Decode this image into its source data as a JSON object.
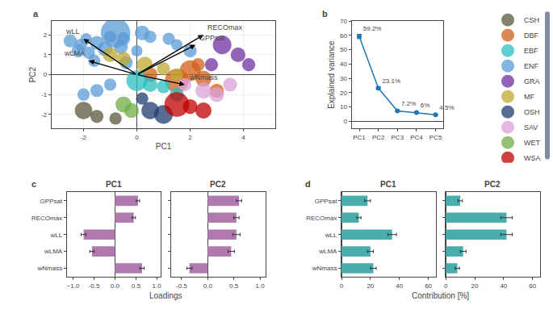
{
  "chart_data": [
    {
      "type": "scatter",
      "title": "a",
      "xlabel": "PC1",
      "ylabel": "PC2",
      "xlim": [
        -3.2,
        5.2
      ],
      "ylim": [
        -2.7,
        2.7
      ],
      "xticks": [
        -2,
        0,
        2,
        4
      ],
      "yticks": [
        -2,
        -1,
        0,
        1,
        2
      ],
      "grid": true,
      "legend": "right",
      "series": [
        {
          "name": "CSH",
          "color": "#5a5a3c",
          "x": [
            -2.0,
            -1.5,
            -0.8
          ],
          "values": [
            -1.8,
            -2.1,
            -2.2
          ],
          "sizes": [
            70,
            40,
            35
          ]
        },
        {
          "name": "DBF",
          "color": "#d2601a",
          "x": [
            0.5,
            1.5,
            2.0,
            2.5,
            2.3,
            3.0
          ],
          "values": [
            0.0,
            -0.3,
            0.2,
            -0.2,
            0.5,
            -0.8
          ],
          "sizes": [
            50,
            130,
            100,
            60,
            40,
            45
          ]
        },
        {
          "name": "EBF",
          "color": "#2abfbf",
          "x": [
            0.0,
            0.5,
            1.0,
            1.5
          ],
          "values": [
            -0.3,
            -0.5,
            -0.6,
            -1.0
          ],
          "sizes": [
            100,
            50,
            40,
            45
          ]
        },
        {
          "name": "ENF",
          "color": "#5b9bd5",
          "x": [
            -2.5,
            -2.1,
            -1.9,
            -1.5,
            -1.0,
            -0.8,
            -0.5,
            0.2,
            0.5,
            -2.2,
            -1.8,
            -1.2,
            -0.6,
            0.0,
            -1.6,
            -0.4,
            1.2,
            1.5,
            2.0,
            -1.0,
            -1.5,
            -2.0
          ],
          "values": [
            1.7,
            1.5,
            1.8,
            1.6,
            1.9,
            2.1,
            1.8,
            2.1,
            1.9,
            1.2,
            1.1,
            1.3,
            1.4,
            1.2,
            0.7,
            0.6,
            1.8,
            1.5,
            1.2,
            -0.5,
            -0.8,
            -1.0
          ],
          "sizes": [
            40,
            35,
            30,
            45,
            35,
            200,
            40,
            50,
            35,
            40,
            35,
            50,
            45,
            30,
            35,
            40,
            35,
            30,
            40,
            35,
            40,
            35
          ]
        },
        {
          "name": "GRA",
          "color": "#7030a0",
          "x": [
            3.2,
            3.8,
            4.2,
            2.8
          ],
          "values": [
            1.5,
            1.0,
            0.5,
            0.5
          ],
          "sizes": [
            80,
            50,
            40,
            40
          ]
        },
        {
          "name": "MF",
          "color": "#bfaa30",
          "x": [
            -1.0,
            -0.5,
            0.3,
            1.0,
            1.5
          ],
          "values": [
            1.0,
            0.8,
            0.5,
            0.3,
            0.0
          ],
          "sizes": [
            50,
            45,
            60,
            40,
            35
          ]
        },
        {
          "name": "OSH",
          "color": "#1f3b6e",
          "x": [
            0.5,
            1.0,
            0.2
          ],
          "values": [
            -1.8,
            -2.0,
            -1.2
          ],
          "sizes": [
            70,
            80,
            35
          ]
        },
        {
          "name": "SAV",
          "color": "#d9a0d9",
          "x": [
            2.5,
            3.0,
            3.5,
            1.8
          ],
          "values": [
            -0.8,
            -1.0,
            -0.5,
            -0.5
          ],
          "sizes": [
            60,
            50,
            45,
            40
          ]
        },
        {
          "name": "WET",
          "color": "#70ad47",
          "x": [
            -0.5,
            -0.2
          ],
          "values": [
            -1.5,
            -1.8
          ],
          "sizes": [
            60,
            50
          ]
        },
        {
          "name": "WSA",
          "color": "#c00000",
          "x": [
            1.5,
            2.0,
            2.5
          ],
          "values": [
            -1.5,
            -1.6,
            -1.8
          ],
          "sizes": [
            140,
            50,
            60
          ]
        }
      ],
      "annotations": [
        {
          "text": "wLL",
          "x0": 0,
          "y0": 0,
          "x": -2.0,
          "y": 1.8
        },
        {
          "text": "wLMA",
          "x0": 0,
          "y0": 0,
          "x": -1.8,
          "y": 0.7
        },
        {
          "text": "RECOmax",
          "x0": 0,
          "y0": 0,
          "x": 2.5,
          "y": 2.0
        },
        {
          "text": "GPPsat",
          "x0": 0,
          "y0": 0,
          "x": 2.2,
          "y": 1.5
        },
        {
          "text": "wNmass",
          "x0": 0,
          "y0": 0,
          "x": 1.8,
          "y": -0.5
        }
      ]
    },
    {
      "type": "line",
      "title": "b",
      "ylabel": "Explained variance",
      "categories": [
        "PC1",
        "PC2",
        "PC3",
        "PC4",
        "PC5"
      ],
      "values": [
        59.2,
        23.1,
        7.2,
        6.0,
        4.5
      ],
      "errors": [
        1.5,
        1.0,
        0.5,
        0.4,
        0.3
      ],
      "value_labels": [
        "59.2%",
        "23.1%",
        "7.2%",
        "6%",
        "4.5%"
      ],
      "data_labels": true,
      "marker": "circle",
      "ylim": [
        -5,
        70
      ],
      "yticks": [
        0,
        10,
        20,
        30,
        40,
        50,
        60,
        70
      ],
      "grid": false
    },
    {
      "type": "bar",
      "orientation": "horizontal",
      "title": "PC1",
      "annotations": [
        {
          "text": "c"
        }
      ],
      "xlabel": "Loadings",
      "categories": [
        "wNmass",
        "wLMA",
        "wLL",
        "RECOmax",
        "GPPsat"
      ],
      "values": [
        0.65,
        -0.55,
        -0.75,
        0.45,
        0.55
      ],
      "errors": [
        0.05,
        0.05,
        0.06,
        0.04,
        0.04
      ],
      "color": "#b07ab0",
      "xlim": [
        -1.15,
        1.1
      ],
      "xticks": [
        {
          "value": -1.0,
          "label": "−1.0"
        },
        -0.5,
        {
          "value": 0.0,
          "label": "0.0"
        },
        0.5,
        {
          "value": 1.0,
          "label": "1.0"
        }
      ],
      "grid": false
    },
    {
      "type": "bar",
      "orientation": "horizontal",
      "title": "PC2",
      "categories": [
        "wNmass",
        "wLMA",
        "wLL",
        "RECOmax",
        "GPPsat"
      ],
      "values": [
        -0.35,
        0.45,
        0.55,
        0.55,
        0.6
      ],
      "errors": [
        0.05,
        0.06,
        0.07,
        0.05,
        0.05
      ],
      "color": "#b07ab0",
      "xlim": [
        -0.7,
        1.1
      ],
      "xticks": [
        -0.5,
        {
          "value": 0.0,
          "label": "0.0"
        },
        0.5,
        {
          "value": 1.0,
          "label": "1.0"
        }
      ],
      "grid": false,
      "tick_labels": "x"
    },
    {
      "type": "bar",
      "orientation": "horizontal",
      "title": "PC1",
      "annotations": [
        {
          "text": "d"
        }
      ],
      "xlabel": "Contribution [%]",
      "categories": [
        "wNmass",
        "wLMA",
        "wLL",
        "RECOmax",
        "GPPsat"
      ],
      "values": [
        22,
        20,
        35,
        12,
        18
      ],
      "errors": [
        2,
        2,
        3,
        1.5,
        2
      ],
      "color": "#4aadad",
      "xlim": [
        0,
        65
      ],
      "xticks": [
        0,
        20,
        40,
        60
      ],
      "grid": false
    },
    {
      "type": "bar",
      "orientation": "horizontal",
      "title": "PC2",
      "categories": [
        "wNmass",
        "wLMA",
        "wLL",
        "RECOmax",
        "GPPsat"
      ],
      "values": [
        8,
        12,
        42,
        42,
        10
      ],
      "errors": [
        1.5,
        2,
        4,
        4,
        1.5
      ],
      "color": "#4aadad",
      "xlim": [
        0,
        65
      ],
      "xticks": [
        0,
        20,
        40,
        60
      ],
      "grid": false,
      "tick_labels": "x"
    }
  ]
}
